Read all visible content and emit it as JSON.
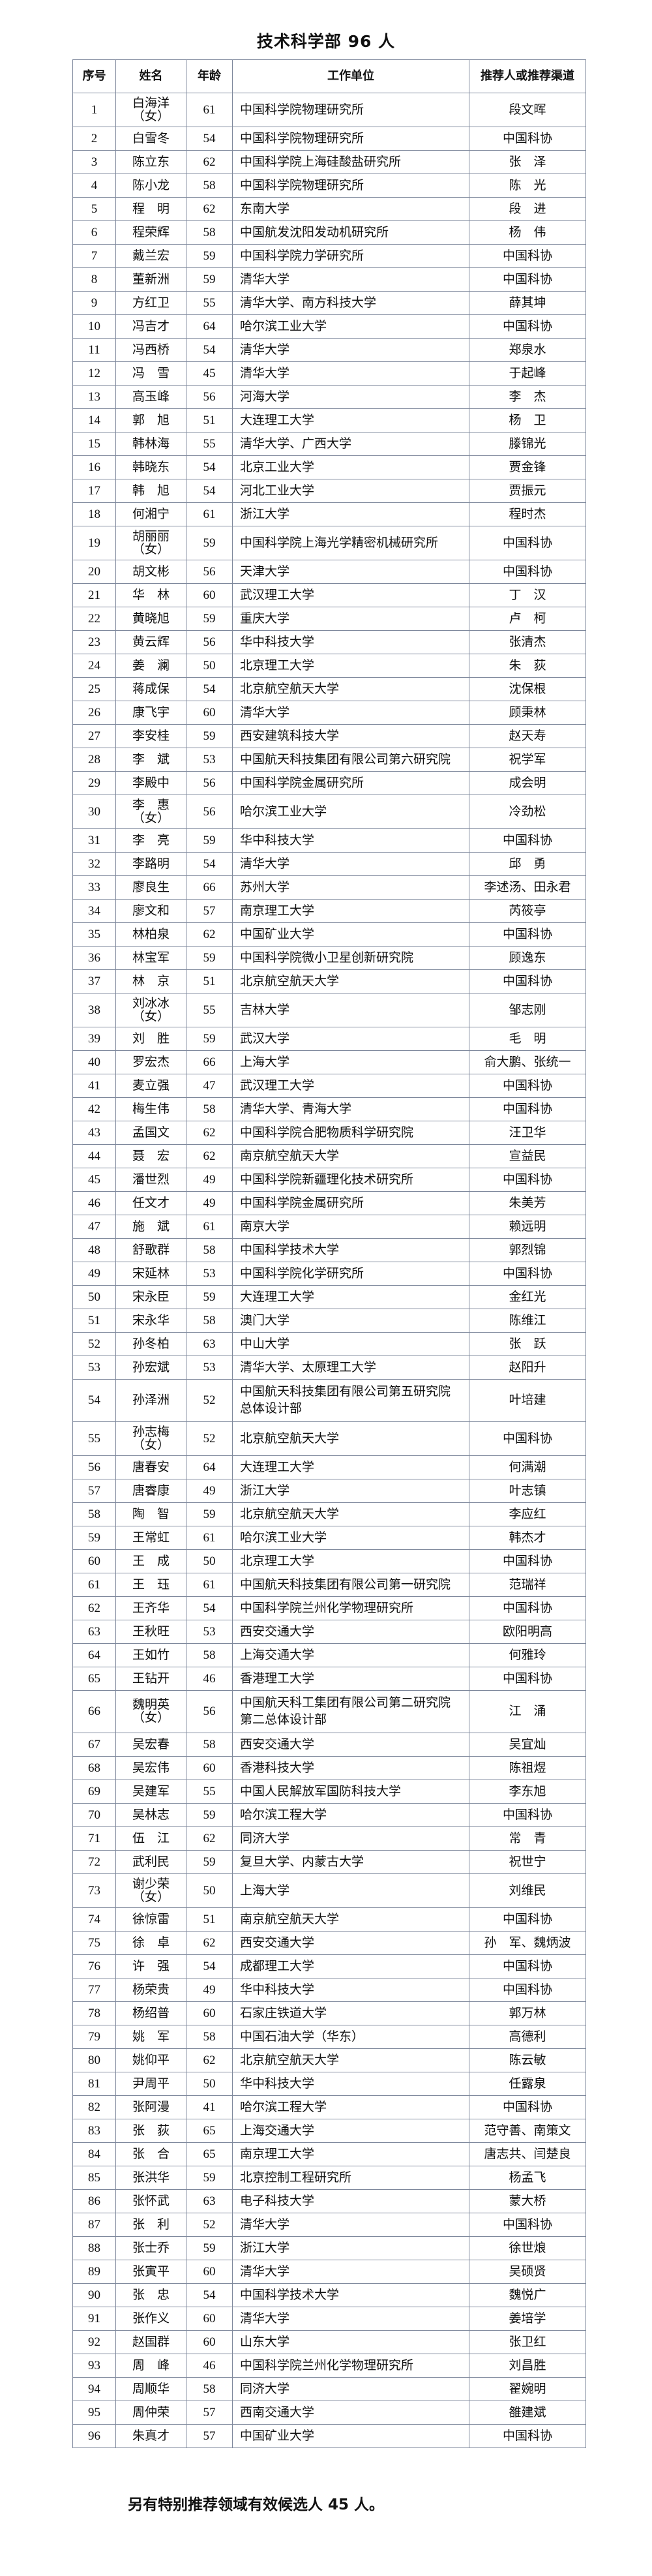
{
  "title": "技术科学部 96 人",
  "headers": [
    "序号",
    "姓名",
    "年龄",
    "工作单位",
    "推荐人或推荐渠道"
  ],
  "rows": [
    {
      "no": "1",
      "name": "白海洋",
      "note": "（女）",
      "age": "61",
      "unit": [
        "中国科学院物理研究所"
      ],
      "rec": "段文晖"
    },
    {
      "no": "2",
      "name": "白雪冬",
      "age": "54",
      "unit": [
        "中国科学院物理研究所"
      ],
      "rec": "中国科协"
    },
    {
      "no": "3",
      "name": "陈立东",
      "age": "62",
      "unit": [
        "中国科学院上海硅酸盐研究所"
      ],
      "rec": "张　泽"
    },
    {
      "no": "4",
      "name": "陈小龙",
      "age": "58",
      "unit": [
        "中国科学院物理研究所"
      ],
      "rec": "陈　光"
    },
    {
      "no": "5",
      "name": "程　明",
      "age": "62",
      "unit": [
        "东南大学"
      ],
      "rec": "段　进"
    },
    {
      "no": "6",
      "name": "程荣辉",
      "age": "58",
      "unit": [
        "中国航发沈阳发动机研究所"
      ],
      "rec": "杨　伟"
    },
    {
      "no": "7",
      "name": "戴兰宏",
      "age": "59",
      "unit": [
        "中国科学院力学研究所"
      ],
      "rec": "中国科协"
    },
    {
      "no": "8",
      "name": "董新洲",
      "age": "59",
      "unit": [
        "清华大学"
      ],
      "rec": "中国科协"
    },
    {
      "no": "9",
      "name": "方红卫",
      "age": "55",
      "unit": [
        "清华大学、南方科技大学"
      ],
      "rec": "薛其坤"
    },
    {
      "no": "10",
      "name": "冯吉才",
      "age": "64",
      "unit": [
        "哈尔滨工业大学"
      ],
      "rec": "中国科协"
    },
    {
      "no": "11",
      "name": "冯西桥",
      "age": "54",
      "unit": [
        "清华大学"
      ],
      "rec": "郑泉水"
    },
    {
      "no": "12",
      "name": "冯　雪",
      "age": "45",
      "unit": [
        "清华大学"
      ],
      "rec": "于起峰"
    },
    {
      "no": "13",
      "name": "高玉峰",
      "age": "56",
      "unit": [
        "河海大学"
      ],
      "rec": "李　杰"
    },
    {
      "no": "14",
      "name": "郭　旭",
      "age": "51",
      "unit": [
        "大连理工大学"
      ],
      "rec": "杨　卫"
    },
    {
      "no": "15",
      "name": "韩林海",
      "age": "55",
      "unit": [
        "清华大学、广西大学"
      ],
      "rec": "滕锦光"
    },
    {
      "no": "16",
      "name": "韩晓东",
      "age": "54",
      "unit": [
        "北京工业大学"
      ],
      "rec": "贾金锋"
    },
    {
      "no": "17",
      "name": "韩　旭",
      "age": "54",
      "unit": [
        "河北工业大学"
      ],
      "rec": "贾振元"
    },
    {
      "no": "18",
      "name": "何湘宁",
      "age": "61",
      "unit": [
        "浙江大学"
      ],
      "rec": "程时杰"
    },
    {
      "no": "19",
      "name": "胡丽丽",
      "note": "（女）",
      "age": "59",
      "unit": [
        "中国科学院上海光学精密机械研究所"
      ],
      "rec": "中国科协"
    },
    {
      "no": "20",
      "name": "胡文彬",
      "age": "56",
      "unit": [
        "天津大学"
      ],
      "rec": "中国科协"
    },
    {
      "no": "21",
      "name": "华　林",
      "age": "60",
      "unit": [
        "武汉理工大学"
      ],
      "rec": "丁　汉"
    },
    {
      "no": "22",
      "name": "黄晓旭",
      "age": "59",
      "unit": [
        "重庆大学"
      ],
      "rec": "卢　柯"
    },
    {
      "no": "23",
      "name": "黄云辉",
      "age": "56",
      "unit": [
        "华中科技大学"
      ],
      "rec": "张清杰"
    },
    {
      "no": "24",
      "name": "姜　澜",
      "age": "50",
      "unit": [
        "北京理工大学"
      ],
      "rec": "朱　荻"
    },
    {
      "no": "25",
      "name": "蒋成保",
      "age": "54",
      "unit": [
        "北京航空航天大学"
      ],
      "rec": "沈保根"
    },
    {
      "no": "26",
      "name": "康飞宇",
      "age": "60",
      "unit": [
        "清华大学"
      ],
      "rec": "顾秉林"
    },
    {
      "no": "27",
      "name": "李安桂",
      "age": "59",
      "unit": [
        "西安建筑科技大学"
      ],
      "rec": "赵天寿"
    },
    {
      "no": "28",
      "name": "李　斌",
      "age": "53",
      "unit": [
        "中国航天科技集团有限公司第六研究院"
      ],
      "rec": "祝学军"
    },
    {
      "no": "29",
      "name": "李殿中",
      "age": "56",
      "unit": [
        "中国科学院金属研究所"
      ],
      "rec": "成会明"
    },
    {
      "no": "30",
      "name": "李　惠",
      "note": "（女）",
      "age": "56",
      "unit": [
        "哈尔滨工业大学"
      ],
      "rec": "冷劲松"
    },
    {
      "no": "31",
      "name": "李　亮",
      "age": "59",
      "unit": [
        "华中科技大学"
      ],
      "rec": "中国科协"
    },
    {
      "no": "32",
      "name": "李路明",
      "age": "54",
      "unit": [
        "清华大学"
      ],
      "rec": "邱　勇"
    },
    {
      "no": "33",
      "name": "廖良生",
      "age": "66",
      "unit": [
        "苏州大学"
      ],
      "rec": "李述汤、田永君"
    },
    {
      "no": "34",
      "name": "廖文和",
      "age": "57",
      "unit": [
        "南京理工大学"
      ],
      "rec": "芮筱亭"
    },
    {
      "no": "35",
      "name": "林柏泉",
      "age": "62",
      "unit": [
        "中国矿业大学"
      ],
      "rec": "中国科协"
    },
    {
      "no": "36",
      "name": "林宝军",
      "age": "59",
      "unit": [
        "中国科学院微小卫星创新研究院"
      ],
      "rec": "顾逸东"
    },
    {
      "no": "37",
      "name": "林　京",
      "age": "51",
      "unit": [
        "北京航空航天大学"
      ],
      "rec": "中国科协"
    },
    {
      "no": "38",
      "name": "刘冰冰",
      "note": "（女）",
      "age": "55",
      "unit": [
        "吉林大学"
      ],
      "rec": "邹志刚"
    },
    {
      "no": "39",
      "name": "刘　胜",
      "age": "59",
      "unit": [
        "武汉大学"
      ],
      "rec": "毛　明"
    },
    {
      "no": "40",
      "name": "罗宏杰",
      "age": "66",
      "unit": [
        "上海大学"
      ],
      "rec": "俞大鹏、张统一"
    },
    {
      "no": "41",
      "name": "麦立强",
      "age": "47",
      "unit": [
        "武汉理工大学"
      ],
      "rec": "中国科协"
    },
    {
      "no": "42",
      "name": "梅生伟",
      "age": "58",
      "unit": [
        "清华大学、青海大学"
      ],
      "rec": "中国科协"
    },
    {
      "no": "43",
      "name": "孟国文",
      "age": "62",
      "unit": [
        "中国科学院合肥物质科学研究院"
      ],
      "rec": "汪卫华"
    },
    {
      "no": "44",
      "name": "聂　宏",
      "age": "62",
      "unit": [
        "南京航空航天大学"
      ],
      "rec": "宣益民"
    },
    {
      "no": "45",
      "name": "潘世烈",
      "age": "49",
      "unit": [
        "中国科学院新疆理化技术研究所"
      ],
      "rec": "中国科协"
    },
    {
      "no": "46",
      "name": "任文才",
      "age": "49",
      "unit": [
        "中国科学院金属研究所"
      ],
      "rec": "朱美芳"
    },
    {
      "no": "47",
      "name": "施　斌",
      "age": "61",
      "unit": [
        "南京大学"
      ],
      "rec": "赖远明"
    },
    {
      "no": "48",
      "name": "舒歌群",
      "age": "58",
      "unit": [
        "中国科学技术大学"
      ],
      "rec": "郭烈锦"
    },
    {
      "no": "49",
      "name": "宋延林",
      "age": "53",
      "unit": [
        "中国科学院化学研究所"
      ],
      "rec": "中国科协"
    },
    {
      "no": "50",
      "name": "宋永臣",
      "age": "59",
      "unit": [
        "大连理工大学"
      ],
      "rec": "金红光"
    },
    {
      "no": "51",
      "name": "宋永华",
      "age": "58",
      "unit": [
        "澳门大学"
      ],
      "rec": "陈维江"
    },
    {
      "no": "52",
      "name": "孙冬柏",
      "age": "63",
      "unit": [
        "中山大学"
      ],
      "rec": "张　跃"
    },
    {
      "no": "53",
      "name": "孙宏斌",
      "age": "53",
      "unit": [
        "清华大学、太原理工大学"
      ],
      "rec": "赵阳升"
    },
    {
      "no": "54",
      "name": "孙泽洲",
      "age": "52",
      "unit": [
        "中国航天科技集团有限公司第五研究院",
        "总体设计部"
      ],
      "rec": "叶培建"
    },
    {
      "no": "55",
      "name": "孙志梅",
      "note": "（女）",
      "age": "52",
      "unit": [
        "北京航空航天大学"
      ],
      "rec": "中国科协"
    },
    {
      "no": "56",
      "name": "唐春安",
      "age": "64",
      "unit": [
        "大连理工大学"
      ],
      "rec": "何满潮"
    },
    {
      "no": "57",
      "name": "唐睿康",
      "age": "49",
      "unit": [
        "浙江大学"
      ],
      "rec": "叶志镇"
    },
    {
      "no": "58",
      "name": "陶　智",
      "age": "59",
      "unit": [
        "北京航空航天大学"
      ],
      "rec": "李应红"
    },
    {
      "no": "59",
      "name": "王常虹",
      "age": "61",
      "unit": [
        "哈尔滨工业大学"
      ],
      "rec": "韩杰才"
    },
    {
      "no": "60",
      "name": "王　成",
      "age": "50",
      "unit": [
        "北京理工大学"
      ],
      "rec": "中国科协"
    },
    {
      "no": "61",
      "name": "王　珏",
      "age": "61",
      "unit": [
        "中国航天科技集团有限公司第一研究院"
      ],
      "rec": "范瑞祥"
    },
    {
      "no": "62",
      "name": "王齐华",
      "age": "54",
      "unit": [
        "中国科学院兰州化学物理研究所"
      ],
      "rec": "中国科协"
    },
    {
      "no": "63",
      "name": "王秋旺",
      "age": "53",
      "unit": [
        "西安交通大学"
      ],
      "rec": "欧阳明高"
    },
    {
      "no": "64",
      "name": "王如竹",
      "age": "58",
      "unit": [
        "上海交通大学"
      ],
      "rec": "何雅玲"
    },
    {
      "no": "65",
      "name": "王钻开",
      "age": "46",
      "unit": [
        "香港理工大学"
      ],
      "rec": "中国科协"
    },
    {
      "no": "66",
      "name": "魏明英",
      "note": "（女）",
      "age": "56",
      "unit": [
        "中国航天科工集团有限公司第二研究院",
        "第二总体设计部"
      ],
      "rec": "江　涌"
    },
    {
      "no": "67",
      "name": "吴宏春",
      "age": "58",
      "unit": [
        "西安交通大学"
      ],
      "rec": "吴宜灿"
    },
    {
      "no": "68",
      "name": "吴宏伟",
      "age": "60",
      "unit": [
        "香港科技大学"
      ],
      "rec": "陈祖煜"
    },
    {
      "no": "69",
      "name": "吴建军",
      "age": "55",
      "unit": [
        "中国人民解放军国防科技大学"
      ],
      "rec": "李东旭"
    },
    {
      "no": "70",
      "name": "吴林志",
      "age": "59",
      "unit": [
        "哈尔滨工程大学"
      ],
      "rec": "中国科协"
    },
    {
      "no": "71",
      "name": "伍　江",
      "age": "62",
      "unit": [
        "同济大学"
      ],
      "rec": "常　青"
    },
    {
      "no": "72",
      "name": "武利民",
      "age": "59",
      "unit": [
        "复旦大学、内蒙古大学"
      ],
      "rec": "祝世宁"
    },
    {
      "no": "73",
      "name": "谢少荣",
      "note": "（女）",
      "age": "50",
      "unit": [
        "上海大学"
      ],
      "rec": "刘维民"
    },
    {
      "no": "74",
      "name": "徐惊雷",
      "age": "51",
      "unit": [
        "南京航空航天大学"
      ],
      "rec": "中国科协"
    },
    {
      "no": "75",
      "name": "徐　卓",
      "age": "62",
      "unit": [
        "西安交通大学"
      ],
      "rec": "孙　军、魏炳波"
    },
    {
      "no": "76",
      "name": "许　强",
      "age": "54",
      "unit": [
        "成都理工大学"
      ],
      "rec": "中国科协"
    },
    {
      "no": "77",
      "name": "杨荣贵",
      "age": "49",
      "unit": [
        "华中科技大学"
      ],
      "rec": "中国科协"
    },
    {
      "no": "78",
      "name": "杨绍普",
      "age": "60",
      "unit": [
        "石家庄铁道大学"
      ],
      "rec": "郭万林"
    },
    {
      "no": "79",
      "name": "姚　军",
      "age": "58",
      "unit": [
        "中国石油大学（华东）"
      ],
      "rec": "高德利"
    },
    {
      "no": "80",
      "name": "姚仰平",
      "age": "62",
      "unit": [
        "北京航空航天大学"
      ],
      "rec": "陈云敏"
    },
    {
      "no": "81",
      "name": "尹周平",
      "age": "50",
      "unit": [
        "华中科技大学"
      ],
      "rec": "任露泉"
    },
    {
      "no": "82",
      "name": "张阿漫",
      "age": "41",
      "unit": [
        "哈尔滨工程大学"
      ],
      "rec": "中国科协"
    },
    {
      "no": "83",
      "name": "张　荻",
      "age": "65",
      "unit": [
        "上海交通大学"
      ],
      "rec": "范守善、南策文"
    },
    {
      "no": "84",
      "name": "张　合",
      "age": "65",
      "unit": [
        "南京理工大学"
      ],
      "rec": "唐志共、闫楚良"
    },
    {
      "no": "85",
      "name": "张洪华",
      "age": "59",
      "unit": [
        "北京控制工程研究所"
      ],
      "rec": "杨孟飞"
    },
    {
      "no": "86",
      "name": "张怀武",
      "age": "63",
      "unit": [
        "电子科技大学"
      ],
      "rec": "蒙大桥"
    },
    {
      "no": "87",
      "name": "张　利",
      "age": "52",
      "unit": [
        "清华大学"
      ],
      "rec": "中国科协"
    },
    {
      "no": "88",
      "name": "张士乔",
      "age": "59",
      "unit": [
        "浙江大学"
      ],
      "rec": "徐世烺"
    },
    {
      "no": "89",
      "name": "张寅平",
      "age": "60",
      "unit": [
        "清华大学"
      ],
      "rec": "吴硕贤"
    },
    {
      "no": "90",
      "name": "张　忠",
      "age": "54",
      "unit": [
        "中国科学技术大学"
      ],
      "rec": "魏悦广"
    },
    {
      "no": "91",
      "name": "张作义",
      "age": "60",
      "unit": [
        "清华大学"
      ],
      "rec": "姜培学"
    },
    {
      "no": "92",
      "name": "赵国群",
      "age": "60",
      "unit": [
        "山东大学"
      ],
      "rec": "张卫红"
    },
    {
      "no": "93",
      "name": "周　峰",
      "age": "46",
      "unit": [
        "中国科学院兰州化学物理研究所"
      ],
      "rec": "刘昌胜"
    },
    {
      "no": "94",
      "name": "周顺华",
      "age": "58",
      "unit": [
        "同济大学"
      ],
      "rec": "翟婉明"
    },
    {
      "no": "95",
      "name": "周仲荣",
      "age": "57",
      "unit": [
        "西南交通大学"
      ],
      "rec": "雒建斌"
    },
    {
      "no": "96",
      "name": "朱真才",
      "age": "57",
      "unit": [
        "中国矿业大学"
      ],
      "rec": "中国科协"
    }
  ],
  "footer": "另有特别推荐领域有效候选人 45 人。"
}
